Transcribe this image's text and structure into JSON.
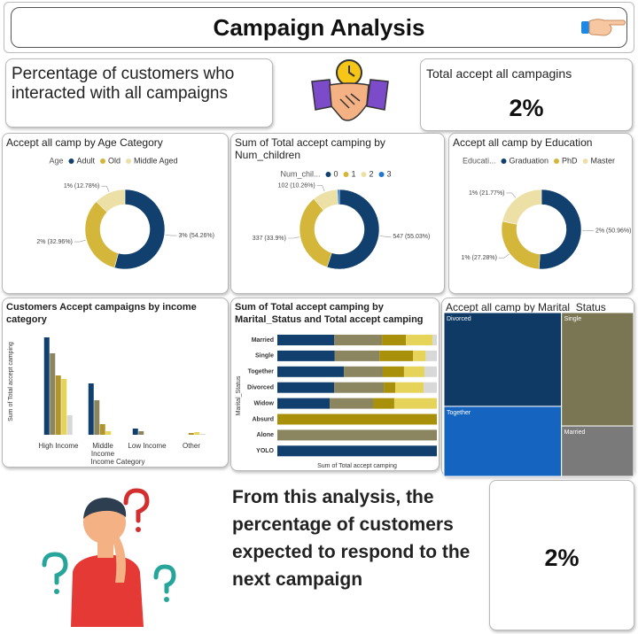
{
  "header": {
    "title": "Campaign Analysis"
  },
  "cards": {
    "interacted": "Percentage of customers who interacted with all campaigns",
    "total_title": "Total accept all campagins",
    "total_value": "2%",
    "conclusion": "From this analysis, the percentage of customers expected to respond to the next campaign",
    "conclusion_value": "2%"
  },
  "chart_data": [
    {
      "type": "donut",
      "title": "Accept all camp by Age Category",
      "legend_title": "Age",
      "categories": [
        "Adult",
        "Old",
        "Middle Aged"
      ],
      "values": [
        54.26,
        32.96,
        12.78
      ],
      "value_labels": [
        "3% (54.26%)",
        "2% (32.96%)",
        "1% (12.78%)"
      ],
      "colors": [
        "#12406e",
        "#d4b73a",
        "#ede0a6"
      ]
    },
    {
      "type": "donut",
      "title": "Sum of Total accept camping by Num_children",
      "legend_title": "Num_chil...",
      "categories": [
        "0",
        "1",
        "2",
        "3"
      ],
      "values": [
        547,
        337,
        102,
        8
      ],
      "value_labels": [
        "547 (55.03%)",
        "337 (33.9%)",
        "102 (10.26%)",
        null
      ],
      "colors": [
        "#12406e",
        "#d4b73a",
        "#ede0a6",
        "#1f77d0"
      ]
    },
    {
      "type": "donut",
      "title": "Accept all camp by Education",
      "legend_title": "Educati...",
      "categories": [
        "Graduation",
        "PhD",
        "Master"
      ],
      "values": [
        50.96,
        27.28,
        21.77
      ],
      "value_labels": [
        "2% (50.96%)",
        "1% (27.28%)",
        "1% (21.77%)"
      ],
      "colors": [
        "#12406e",
        "#d4b73a",
        "#ede0a6"
      ]
    },
    {
      "type": "bar",
      "title": "Customers Accept campaigns by income category",
      "y_label": "Sum of Total accept camping",
      "x_label": "Income Category",
      "categories": [
        "High Income",
        "Middle Income",
        "Low Income",
        "Other"
      ],
      "ylim": [
        0,
        120
      ],
      "series": [
        {
          "color": "#12406e",
          "values": [
            110,
            58,
            7,
            0
          ]
        },
        {
          "color": "#8b8560",
          "values": [
            92,
            39,
            4,
            0
          ]
        },
        {
          "color": "#b0962a",
          "values": [
            67,
            12,
            0,
            2
          ]
        },
        {
          "color": "#e6d35a",
          "values": [
            63,
            4,
            0,
            3
          ]
        },
        {
          "color": "#d8d8d8",
          "values": [
            22,
            0,
            0,
            1
          ]
        }
      ]
    },
    {
      "type": "stacked_bar",
      "title": "Sum of Total accept camping by Marital_Status and Total accept camping",
      "y_label": "Marital_Status",
      "x_label": "Sum of Total accept camping",
      "categories": [
        "Married",
        "Single",
        "Together",
        "Divorced",
        "Widow",
        "Absurd",
        "Alone",
        "YOLO"
      ],
      "xlim": [
        0,
        100
      ],
      "series": [
        {
          "color": "#12406e",
          "values": [
            35.6,
            36,
            41.7,
            35.6,
            32.8,
            0,
            0,
            100
          ]
        },
        {
          "color": "#8b8560",
          "values": [
            30,
            28,
            24.4,
            31.1,
            27.2,
            0,
            100,
            0
          ]
        },
        {
          "color": "#a8900a",
          "values": [
            15,
            21,
            13.3,
            7.2,
            13.3,
            100,
            0,
            0
          ]
        },
        {
          "color": "#e6d35a",
          "values": [
            16.7,
            8,
            12.8,
            17.8,
            26.7,
            0,
            0,
            0
          ]
        },
        {
          "color": "#d8d8d8",
          "values": [
            2.7,
            7,
            7.8,
            8.3,
            0,
            0,
            0,
            0
          ]
        }
      ]
    },
    {
      "type": "treemap",
      "title": "Accept all camp by Marital_Status",
      "categories": [
        "Divorced",
        "Together",
        "Single",
        "Married"
      ],
      "values": [
        35.5,
        26.5,
        26.3,
        11.7
      ],
      "colors": [
        "#0f3a66",
        "#1565c0",
        "#7a7553",
        "#7a7a7a"
      ]
    }
  ]
}
